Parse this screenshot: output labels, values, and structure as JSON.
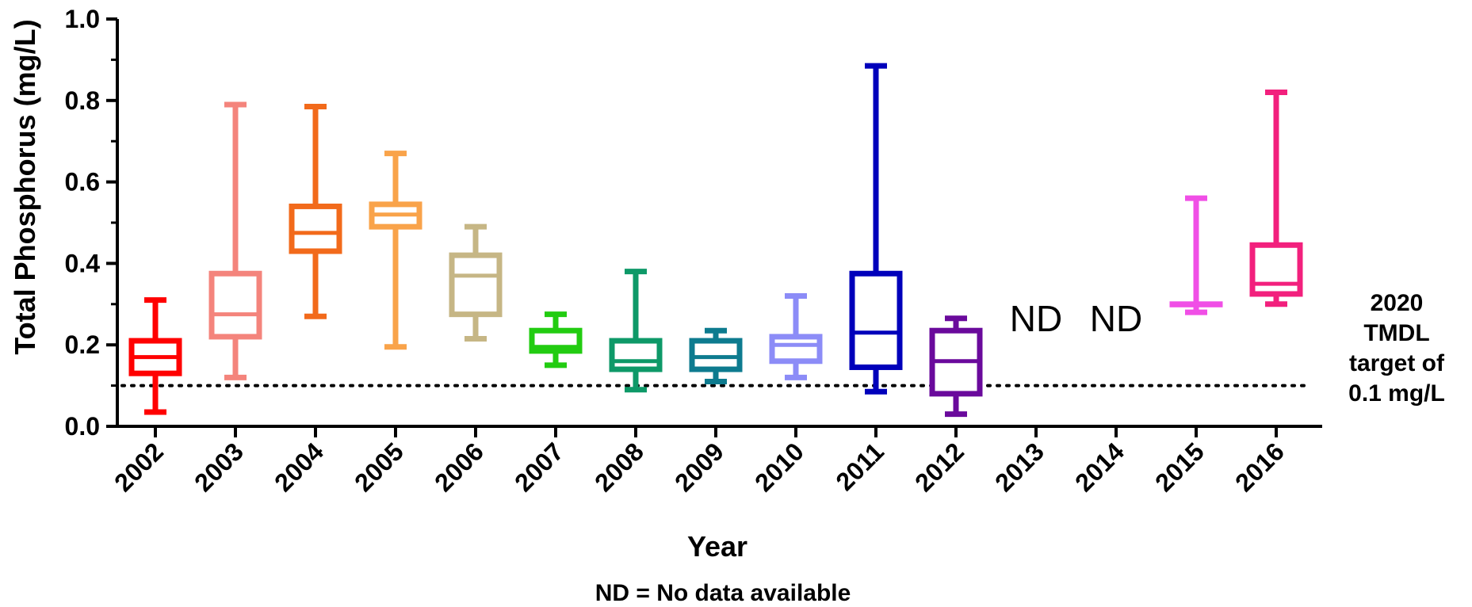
{
  "chart_data": {
    "type": "box",
    "xlabel": "Year",
    "ylabel": "Total Phosphorus (mg/L)",
    "ylim": [
      0,
      1.0
    ],
    "yticks": [
      "0.0",
      "0.2",
      "0.4",
      "0.6",
      "0.8",
      "1.0"
    ],
    "categories": [
      "2002",
      "2003",
      "2004",
      "2005",
      "2006",
      "2007",
      "2008",
      "2009",
      "2010",
      "2011",
      "2012",
      "2013",
      "2014",
      "2015",
      "2016"
    ],
    "boxes": [
      {
        "year": "2002",
        "min": 0.035,
        "q1": 0.13,
        "median": 0.17,
        "q3": 0.21,
        "max": 0.31,
        "color": "#ff0000"
      },
      {
        "year": "2003",
        "min": 0.12,
        "q1": 0.22,
        "median": 0.275,
        "q3": 0.375,
        "max": 0.79,
        "color": "#f4847c"
      },
      {
        "year": "2004",
        "min": 0.27,
        "q1": 0.43,
        "median": 0.475,
        "q3": 0.54,
        "max": 0.785,
        "color": "#f26a1b"
      },
      {
        "year": "2005",
        "min": 0.195,
        "q1": 0.49,
        "median": 0.52,
        "q3": 0.545,
        "max": 0.67,
        "color": "#f9a34a"
      },
      {
        "year": "2006",
        "min": 0.215,
        "q1": 0.275,
        "median": 0.37,
        "q3": 0.42,
        "max": 0.49,
        "color": "#c6b685"
      },
      {
        "year": "2007",
        "min": 0.15,
        "q1": 0.185,
        "median": 0.195,
        "q3": 0.235,
        "max": 0.275,
        "color": "#22cc11"
      },
      {
        "year": "2008",
        "min": 0.09,
        "q1": 0.14,
        "median": 0.16,
        "q3": 0.21,
        "max": 0.38,
        "color": "#0e9968"
      },
      {
        "year": "2009",
        "min": 0.11,
        "q1": 0.14,
        "median": 0.17,
        "q3": 0.21,
        "max": 0.235,
        "color": "#0d7b8f"
      },
      {
        "year": "2010",
        "min": 0.12,
        "q1": 0.16,
        "median": 0.2,
        "q3": 0.22,
        "max": 0.32,
        "color": "#8c8cf7"
      },
      {
        "year": "2011",
        "min": 0.085,
        "q1": 0.145,
        "median": 0.23,
        "q3": 0.375,
        "max": 0.885,
        "color": "#0000bb"
      },
      {
        "year": "2012",
        "min": 0.03,
        "q1": 0.08,
        "median": 0.16,
        "q3": 0.235,
        "max": 0.265,
        "color": "#6a0a9c"
      },
      {
        "year": "2015",
        "min": 0.28,
        "q1": 0.3,
        "median": 0.3,
        "q3": 0.3,
        "max": 0.56,
        "color": "#f04fe6"
      },
      {
        "year": "2016",
        "min": 0.3,
        "q1": 0.325,
        "median": 0.35,
        "q3": 0.445,
        "max": 0.82,
        "color": "#f2207d"
      }
    ],
    "nd_years": [
      "2013",
      "2014"
    ],
    "nd_label": "ND",
    "reference_line": {
      "value": 0.1,
      "style": "dotted",
      "color": "#000000"
    },
    "reference_label": [
      "2020",
      "TMDL",
      "target of",
      "0.1 mg/L"
    ],
    "footnote": "ND = No data available"
  }
}
